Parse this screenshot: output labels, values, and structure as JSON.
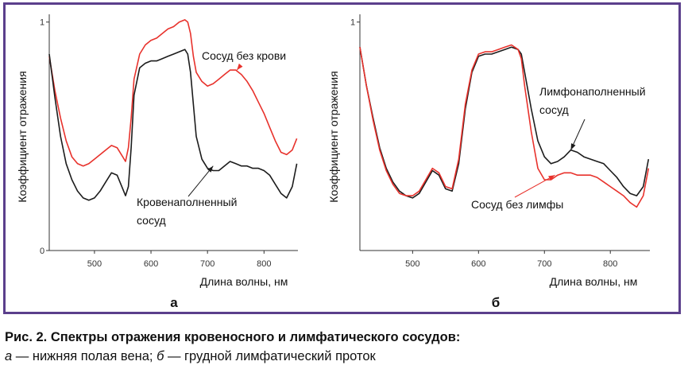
{
  "caption": {
    "title": "Рис. 2. Спектры отражения кровеносного и лимфатического сосудов:",
    "a_letter": "а",
    "a_text": " — нижняя полая вена; ",
    "b_letter": "б",
    "b_text": " — грудной лимфатический проток"
  },
  "chart_data": [
    {
      "type": "line",
      "panel_label": "а",
      "xlabel": "Длина волны, нм",
      "ylabel": "Коэффициент отражения",
      "xlim": [
        420,
        860
      ],
      "ylim": [
        0,
        1.02
      ],
      "xticks": [
        500,
        600,
        700,
        800
      ],
      "yticks": [
        {
          "value": 0,
          "label": "0"
        },
        {
          "value": 1,
          "label": "1"
        }
      ],
      "grid": false,
      "series": [
        {
          "name": "Сосуд без крови",
          "color": "#e8322c",
          "points": [
            [
              420,
              0.85
            ],
            [
              430,
              0.7
            ],
            [
              440,
              0.58
            ],
            [
              450,
              0.48
            ],
            [
              460,
              0.41
            ],
            [
              470,
              0.38
            ],
            [
              480,
              0.37
            ],
            [
              490,
              0.38
            ],
            [
              500,
              0.4
            ],
            [
              510,
              0.42
            ],
            [
              520,
              0.44
            ],
            [
              530,
              0.46
            ],
            [
              540,
              0.45
            ],
            [
              550,
              0.41
            ],
            [
              555,
              0.39
            ],
            [
              560,
              0.45
            ],
            [
              565,
              0.58
            ],
            [
              570,
              0.75
            ],
            [
              580,
              0.86
            ],
            [
              590,
              0.9
            ],
            [
              600,
              0.92
            ],
            [
              610,
              0.93
            ],
            [
              620,
              0.95
            ],
            [
              630,
              0.97
            ],
            [
              640,
              0.98
            ],
            [
              650,
              1.0
            ],
            [
              660,
              1.01
            ],
            [
              665,
              1.0
            ],
            [
              670,
              0.95
            ],
            [
              675,
              0.85
            ],
            [
              680,
              0.78
            ],
            [
              690,
              0.74
            ],
            [
              700,
              0.72
            ],
            [
              710,
              0.73
            ],
            [
              720,
              0.75
            ],
            [
              730,
              0.77
            ],
            [
              740,
              0.79
            ],
            [
              750,
              0.79
            ],
            [
              760,
              0.77
            ],
            [
              770,
              0.74
            ],
            [
              780,
              0.7
            ],
            [
              790,
              0.65
            ],
            [
              800,
              0.6
            ],
            [
              810,
              0.54
            ],
            [
              820,
              0.48
            ],
            [
              830,
              0.43
            ],
            [
              840,
              0.42
            ],
            [
              850,
              0.44
            ],
            [
              858,
              0.49
            ]
          ]
        },
        {
          "name": "Кровенаполненный сосуд",
          "color": "#1c1c1c",
          "points": [
            [
              420,
              0.86
            ],
            [
              430,
              0.67
            ],
            [
              440,
              0.5
            ],
            [
              450,
              0.38
            ],
            [
              460,
              0.31
            ],
            [
              470,
              0.26
            ],
            [
              480,
              0.23
            ],
            [
              490,
              0.22
            ],
            [
              500,
              0.23
            ],
            [
              510,
              0.26
            ],
            [
              520,
              0.3
            ],
            [
              530,
              0.34
            ],
            [
              540,
              0.33
            ],
            [
              550,
              0.27
            ],
            [
              555,
              0.24
            ],
            [
              560,
              0.28
            ],
            [
              565,
              0.45
            ],
            [
              570,
              0.68
            ],
            [
              580,
              0.8
            ],
            [
              590,
              0.82
            ],
            [
              600,
              0.83
            ],
            [
              610,
              0.83
            ],
            [
              620,
              0.84
            ],
            [
              630,
              0.85
            ],
            [
              640,
              0.86
            ],
            [
              650,
              0.87
            ],
            [
              660,
              0.88
            ],
            [
              665,
              0.86
            ],
            [
              670,
              0.78
            ],
            [
              675,
              0.64
            ],
            [
              680,
              0.5
            ],
            [
              690,
              0.4
            ],
            [
              700,
              0.36
            ],
            [
              710,
              0.35
            ],
            [
              720,
              0.35
            ],
            [
              730,
              0.37
            ],
            [
              740,
              0.39
            ],
            [
              750,
              0.38
            ],
            [
              760,
              0.37
            ],
            [
              770,
              0.37
            ],
            [
              780,
              0.36
            ],
            [
              790,
              0.36
            ],
            [
              800,
              0.35
            ],
            [
              810,
              0.33
            ],
            [
              820,
              0.29
            ],
            [
              830,
              0.25
            ],
            [
              840,
              0.23
            ],
            [
              850,
              0.28
            ],
            [
              858,
              0.38
            ]
          ]
        }
      ],
      "annotations": [
        {
          "text_lines": [
            "Сосуд без крови"
          ],
          "arrow_to": [
            752,
            0.79
          ]
        },
        {
          "text_lines": [
            "Кровенаполненный",
            "сосуд"
          ],
          "arrow_to": [
            710,
            0.37
          ]
        }
      ]
    },
    {
      "type": "line",
      "panel_label": "б",
      "xlabel": "Длина волны, нм",
      "ylabel": "Коэффициент отражения",
      "xlim": [
        420,
        860
      ],
      "ylim": [
        0,
        1.02
      ],
      "xticks": [
        500,
        600,
        700,
        800
      ],
      "yticks": [
        {
          "value": 1,
          "label": "1"
        }
      ],
      "grid": false,
      "series": [
        {
          "name": "Лимфонаполненный сосуд",
          "color": "#1c1c1c",
          "points": [
            [
              420,
              0.89
            ],
            [
              430,
              0.72
            ],
            [
              440,
              0.58
            ],
            [
              450,
              0.45
            ],
            [
              460,
              0.36
            ],
            [
              470,
              0.3
            ],
            [
              480,
              0.26
            ],
            [
              490,
              0.24
            ],
            [
              500,
              0.23
            ],
            [
              510,
              0.25
            ],
            [
              520,
              0.3
            ],
            [
              530,
              0.35
            ],
            [
              540,
              0.33
            ],
            [
              550,
              0.27
            ],
            [
              560,
              0.26
            ],
            [
              570,
              0.38
            ],
            [
              580,
              0.62
            ],
            [
              590,
              0.78
            ],
            [
              600,
              0.85
            ],
            [
              610,
              0.86
            ],
            [
              620,
              0.86
            ],
            [
              630,
              0.87
            ],
            [
              640,
              0.88
            ],
            [
              650,
              0.89
            ],
            [
              660,
              0.88
            ],
            [
              665,
              0.86
            ],
            [
              670,
              0.78
            ],
            [
              680,
              0.62
            ],
            [
              690,
              0.48
            ],
            [
              700,
              0.41
            ],
            [
              710,
              0.38
            ],
            [
              720,
              0.39
            ],
            [
              730,
              0.41
            ],
            [
              740,
              0.44
            ],
            [
              750,
              0.43
            ],
            [
              760,
              0.41
            ],
            [
              770,
              0.4
            ],
            [
              780,
              0.39
            ],
            [
              790,
              0.38
            ],
            [
              800,
              0.35
            ],
            [
              810,
              0.32
            ],
            [
              820,
              0.28
            ],
            [
              830,
              0.25
            ],
            [
              840,
              0.24
            ],
            [
              850,
              0.28
            ],
            [
              858,
              0.4
            ]
          ]
        },
        {
          "name": "Сосуд без лимфы",
          "color": "#e8322c",
          "points": [
            [
              420,
              0.89
            ],
            [
              430,
              0.72
            ],
            [
              440,
              0.57
            ],
            [
              450,
              0.44
            ],
            [
              460,
              0.35
            ],
            [
              470,
              0.29
            ],
            [
              480,
              0.25
            ],
            [
              490,
              0.24
            ],
            [
              500,
              0.24
            ],
            [
              510,
              0.26
            ],
            [
              520,
              0.31
            ],
            [
              530,
              0.36
            ],
            [
              540,
              0.34
            ],
            [
              550,
              0.28
            ],
            [
              560,
              0.27
            ],
            [
              570,
              0.4
            ],
            [
              580,
              0.64
            ],
            [
              590,
              0.79
            ],
            [
              600,
              0.86
            ],
            [
              610,
              0.87
            ],
            [
              620,
              0.87
            ],
            [
              630,
              0.88
            ],
            [
              640,
              0.89
            ],
            [
              650,
              0.9
            ],
            [
              660,
              0.88
            ],
            [
              665,
              0.84
            ],
            [
              670,
              0.72
            ],
            [
              680,
              0.52
            ],
            [
              690,
              0.36
            ],
            [
              700,
              0.31
            ],
            [
              710,
              0.31
            ],
            [
              720,
              0.33
            ],
            [
              730,
              0.34
            ],
            [
              740,
              0.34
            ],
            [
              750,
              0.33
            ],
            [
              760,
              0.33
            ],
            [
              770,
              0.33
            ],
            [
              780,
              0.32
            ],
            [
              790,
              0.3
            ],
            [
              800,
              0.28
            ],
            [
              810,
              0.26
            ],
            [
              820,
              0.24
            ],
            [
              830,
              0.21
            ],
            [
              840,
              0.19
            ],
            [
              850,
              0.24
            ],
            [
              858,
              0.36
            ]
          ]
        }
      ],
      "annotations": [
        {
          "text_lines": [
            "Лимфонаполненный",
            "сосуд"
          ],
          "arrow_to": [
            740,
            0.44
          ]
        },
        {
          "text_lines": [
            "Сосуд без лимфы"
          ],
          "arrow_to": [
            716,
            0.33
          ]
        }
      ]
    }
  ]
}
